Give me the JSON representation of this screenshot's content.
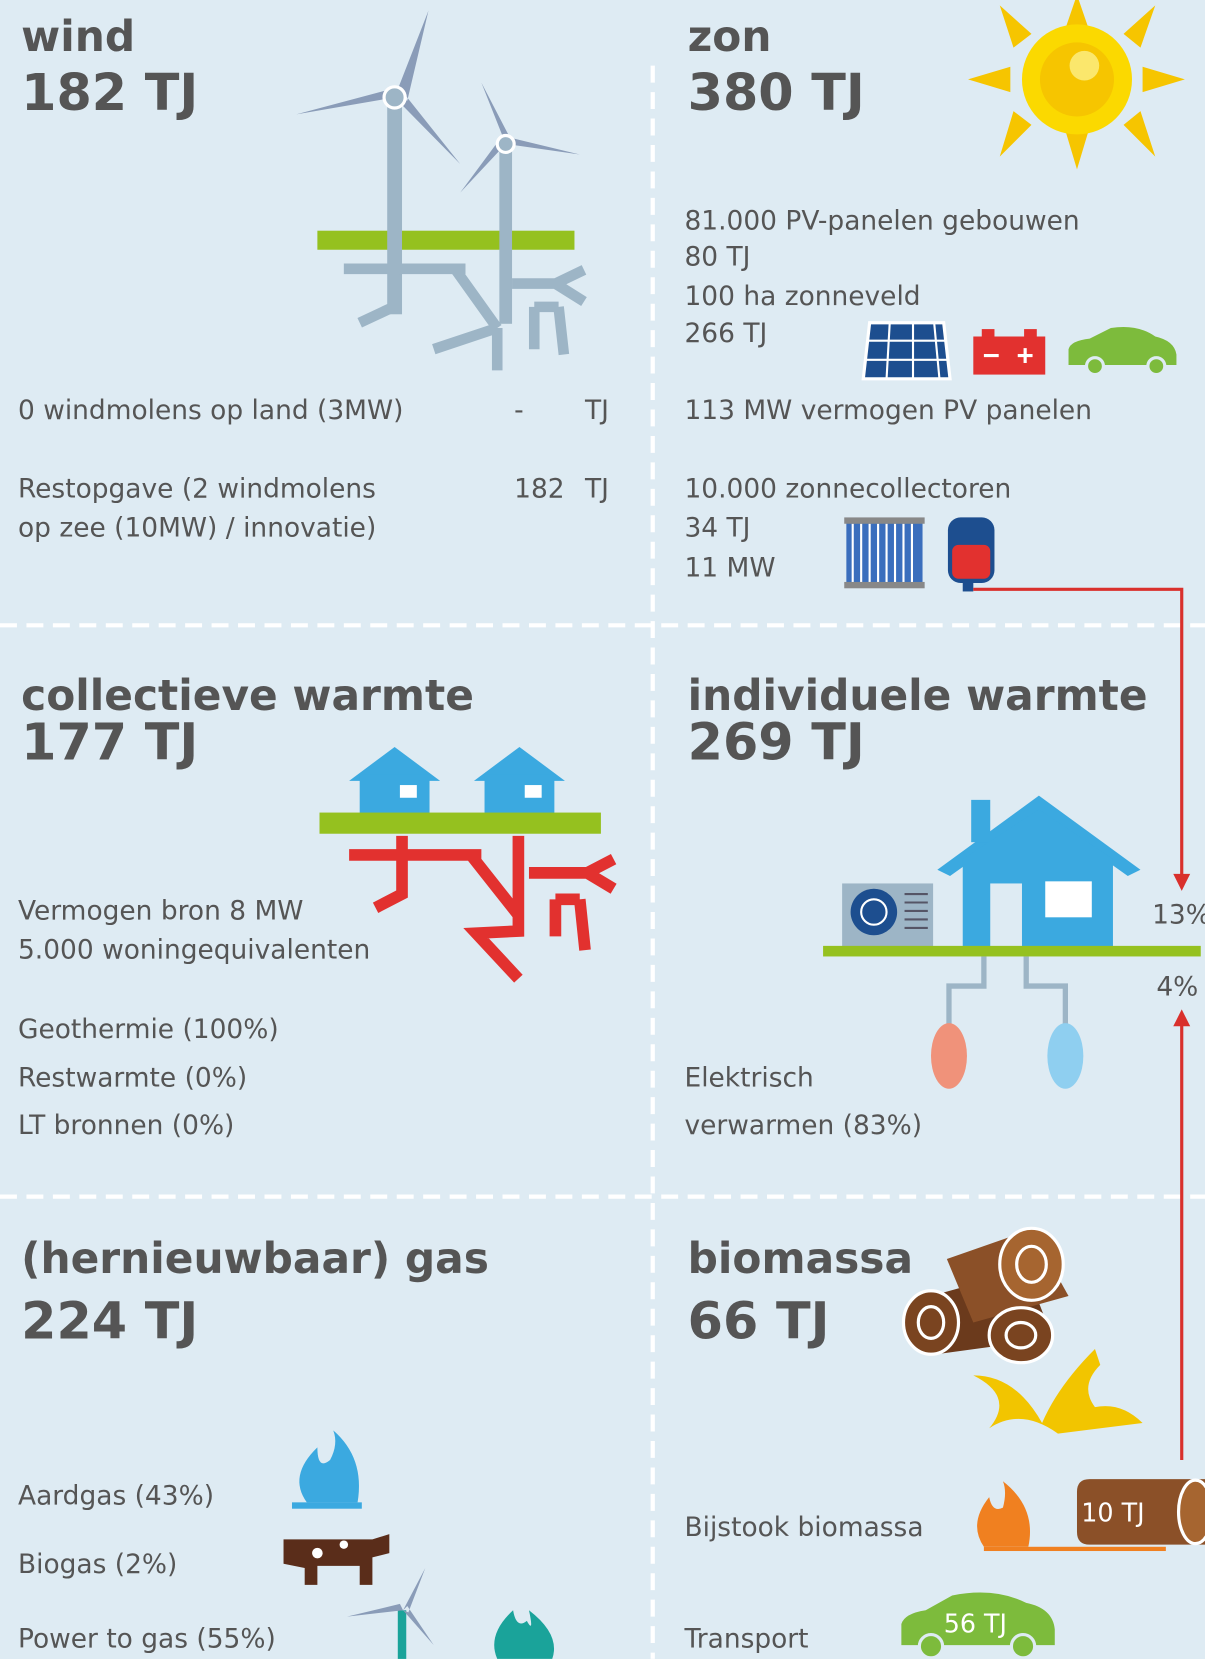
{
  "wind": {
    "title": "wind",
    "total": "182 TJ",
    "rows": [
      {
        "label": [
          "0 windmolens op land (3MW)"
        ],
        "value": "-",
        "unit": "TJ"
      },
      {
        "label": [
          "Restopgave (2 windmolens",
          "op zee (10MW) / innovatie)"
        ],
        "value": "182",
        "unit": "TJ"
      }
    ]
  },
  "zon": {
    "title": "zon",
    "total": "380 TJ",
    "lines": [
      "81.000 PV-panelen gebouwen",
      "80 TJ",
      "100 ha zonneveld",
      "266 TJ",
      "113 MW vermogen PV panelen",
      "10.000 zonnecollectoren",
      "34 TJ",
      "11 MW"
    ]
  },
  "collectieve_warmte": {
    "title": "collectieve warmte",
    "total": "177 TJ",
    "lines": [
      "Vermogen bron 8 MW",
      "5.000 woningequivalenten",
      "Geothermie (100%)",
      "Restwarmte (0%)",
      "LT bronnen (0%)"
    ]
  },
  "individuele_warmte": {
    "title": "individuele warmte",
    "total": "269 TJ",
    "shares": [
      "13%",
      "4%"
    ],
    "lines": [
      "Elektrisch",
      "verwarmen (83%)"
    ]
  },
  "gas": {
    "title": "(hernieuwbaar) gas",
    "total": "224 TJ",
    "lines": [
      "Aardgas (43%)",
      "Biogas (2%)",
      "Power to gas (55%)"
    ]
  },
  "biomassa": {
    "title": "biomassa",
    "total": "66 TJ",
    "lines": [
      "Bijstook biomassa",
      "Transport"
    ],
    "bijstook_label": "10 TJ",
    "transport_label": "56 TJ"
  }
}
